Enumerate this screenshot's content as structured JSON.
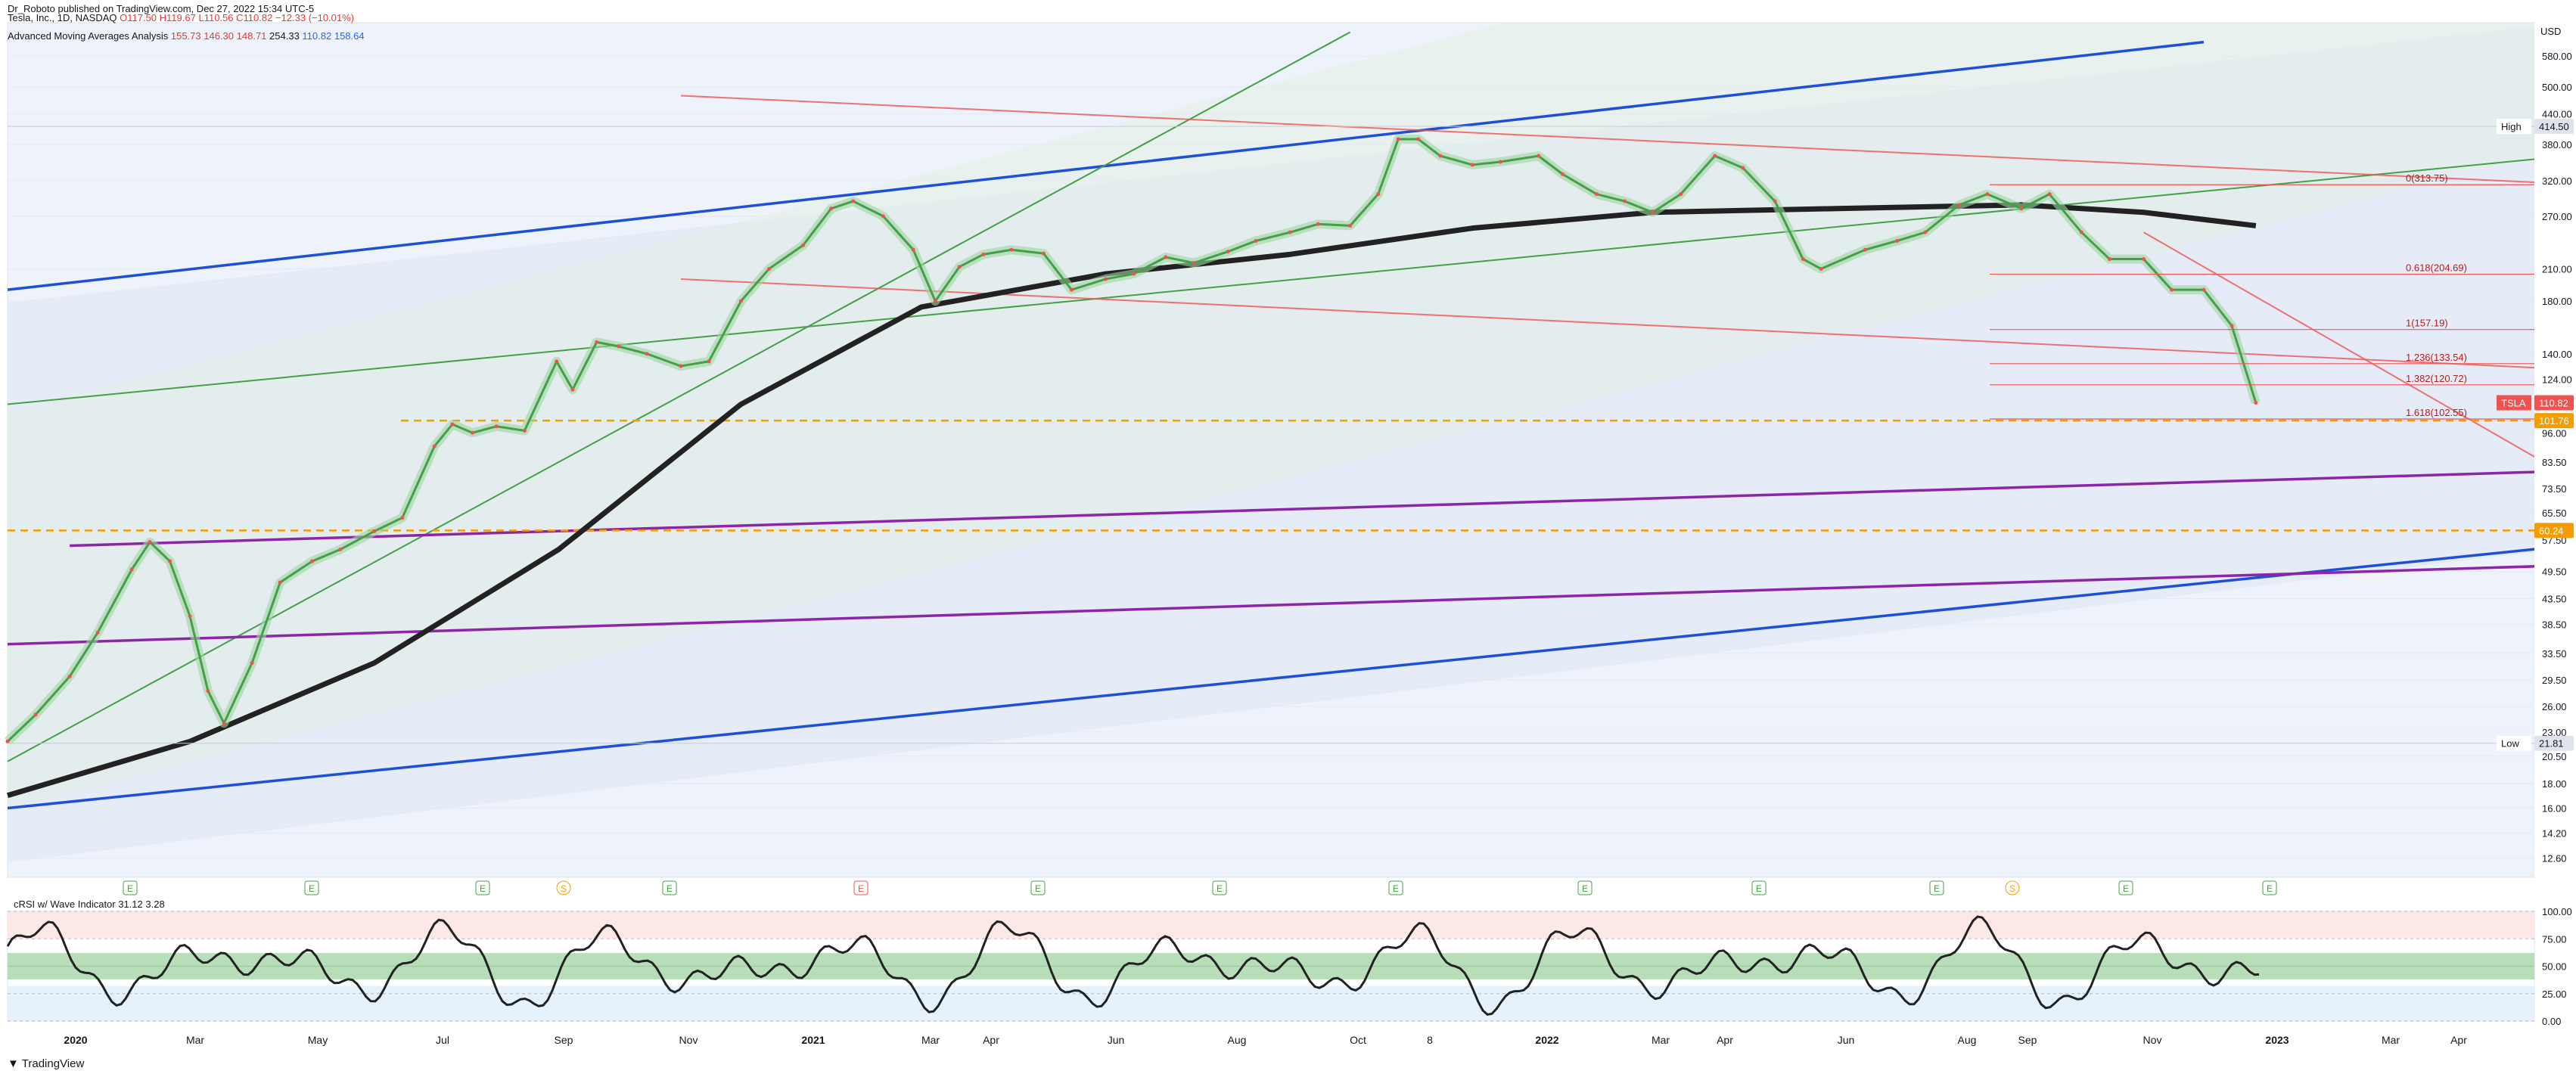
{
  "header": {
    "published": "Dr_Roboto published on TradingView.com, Dec 27, 2022 15:34 UTC-5",
    "symbol": "Tesla, Inc., 1D, NASDAQ",
    "ohlc": {
      "o": "O117.50",
      "h": "H119.67",
      "l": "L110.56",
      "c": "C110.82",
      "chg": "−12.33 (−10.01%)"
    },
    "indicator_name": "Advanced Moving Averages Analysis",
    "indicator_values": [
      "155.73",
      "146.30",
      "148.71",
      "254.33",
      "110.82",
      "158.64"
    ]
  },
  "footer": {
    "brand": "TradingView"
  },
  "colors": {
    "green": "#43a047",
    "red": "#ef5350",
    "blue": "#1e4fd8",
    "purple": "#8e24aa",
    "orange": "#f59d00",
    "black": "#222222",
    "bb": "#4aa3df"
  },
  "chart_data": {
    "type": "line",
    "title": "",
    "currency": "USD",
    "scale": "log",
    "ylim": [
      11.5,
      680
    ],
    "y_ticks": [
      "580.00",
      "500.00",
      "440.00",
      "380.00",
      "320.00",
      "270.00",
      "210.00",
      "180.00",
      "140.00",
      "124.00",
      "110.82",
      "96.00",
      "83.50",
      "73.50",
      "65.50",
      "57.50",
      "49.50",
      "43.50",
      "38.50",
      "33.50",
      "29.50",
      "26.00",
      "23.00",
      "20.50",
      "18.00",
      "16.00",
      "14.20",
      "12.60"
    ],
    "x_ticks": [
      "2020",
      "Mar",
      "May",
      "Jul",
      "Sep",
      "Nov",
      "2021",
      "Mar",
      "Apr",
      "Jun",
      "Aug",
      "Oct",
      "8",
      "2022",
      "Mar",
      "Apr",
      "Jun",
      "Aug",
      "Sep",
      "Nov",
      "2023",
      "Mar",
      "Apr"
    ],
    "price_labels": [
      {
        "text": "High",
        "value": "414.50"
      },
      {
        "text": "TSLA",
        "value": "110.82"
      },
      {
        "text": "",
        "value": "101.76"
      },
      {
        "text": "",
        "value": "60.24"
      },
      {
        "text": "Low",
        "value": "21.81"
      }
    ],
    "fib_levels": [
      "0(313.75)",
      "0.618(204.69)",
      "1(157.19)",
      "1.236(133.54)",
      "1.382(120.72)",
      "1.618(102.55)"
    ],
    "price_series": {
      "name": "TSLA",
      "x": [
        "2019-12-01",
        "2019-12-15",
        "2020-01-01",
        "2020-01-15",
        "2020-02-01",
        "2020-02-10",
        "2020-02-20",
        "2020-03-01",
        "2020-03-10",
        "2020-03-18",
        "2020-04-01",
        "2020-04-15",
        "2020-05-01",
        "2020-05-15",
        "2020-06-01",
        "2020-06-15",
        "2020-07-01",
        "2020-07-10",
        "2020-07-20",
        "2020-08-01",
        "2020-08-15",
        "2020-08-31",
        "2020-09-08",
        "2020-09-20",
        "2020-10-01",
        "2020-10-15",
        "2020-11-01",
        "2020-11-15",
        "2020-12-01",
        "2020-12-15",
        "2021-01-01",
        "2021-01-15",
        "2021-01-26",
        "2021-02-10",
        "2021-02-25",
        "2021-03-08",
        "2021-03-20",
        "2021-04-01",
        "2021-04-15",
        "2021-05-01",
        "2021-05-15",
        "2021-06-01",
        "2021-06-15",
        "2021-07-01",
        "2021-07-15",
        "2021-08-01",
        "2021-08-15",
        "2021-09-01",
        "2021-09-15",
        "2021-10-01",
        "2021-10-15",
        "2021-10-25",
        "2021-11-04",
        "2021-11-15",
        "2021-12-01",
        "2021-12-15",
        "2022-01-03",
        "2022-01-15",
        "2022-02-01",
        "2022-02-15",
        "2022-03-01",
        "2022-03-15",
        "2022-04-01",
        "2022-04-15",
        "2022-05-01",
        "2022-05-15",
        "2022-05-24",
        "2022-06-15",
        "2022-07-01",
        "2022-07-15",
        "2022-08-01",
        "2022-08-15",
        "2022-09-01",
        "2022-09-15",
        "2022-10-01",
        "2022-10-15",
        "2022-11-01",
        "2022-11-15",
        "2022-12-01",
        "2022-12-15",
        "2022-12-27"
      ],
      "values": [
        22,
        25,
        30,
        37,
        50,
        57,
        52,
        40,
        28,
        24,
        32,
        47,
        52,
        55,
        60,
        64,
        90,
        100,
        96,
        99,
        97,
        135,
        118,
        148,
        145,
        140,
        132,
        135,
        180,
        210,
        235,
        280,
        290,
        270,
        230,
        180,
        212,
        225,
        230,
        226,
        190,
        200,
        205,
        222,
        216,
        228,
        240,
        250,
        260,
        258,
        300,
        390,
        390,
        360,
        345,
        350,
        360,
        330,
        300,
        290,
        275,
        300,
        360,
        340,
        290,
        220,
        210,
        230,
        240,
        250,
        285,
        300,
        280,
        300,
        250,
        220,
        220,
        190,
        190,
        160,
        110.82
      ]
    },
    "ma_200": {
      "name": "",
      "x": [
        "2019-12-01",
        "2020-03-01",
        "2020-06-01",
        "2020-09-01",
        "2020-12-01",
        "2021-03-01",
        "2021-06-01",
        "2021-09-01",
        "2021-12-01",
        "2022-03-01",
        "2022-06-01",
        "2022-09-01",
        "2022-11-01",
        "2022-12-27"
      ],
      "values": [
        17,
        22,
        32,
        55,
        110,
        175,
        205,
        225,
        255,
        275,
        280,
        285,
        275,
        258
      ]
    },
    "lines": [
      {
        "name": "",
        "x": [
          "2019-12-01",
          "2022-12-01"
        ],
        "values": [
          190,
          620
        ]
      },
      {
        "name": "",
        "x": [
          "2019-12-01",
          "2023-06-01"
        ],
        "values": [
          16,
          56
        ]
      },
      {
        "name": "",
        "x": [
          "2019-12-01",
          "2021-10-01"
        ],
        "values": [
          20,
          650
        ]
      },
      {
        "name": "",
        "x": [
          "2019-12-01",
          "2023-06-01"
        ],
        "values": [
          110,
          360
        ]
      },
      {
        "name": "",
        "x": [
          "2020-01-01",
          "2023-06-01"
        ],
        "values": [
          56,
          80
        ]
      },
      {
        "name": "",
        "x": [
          "2019-12-01",
          "2023-06-01"
        ],
        "values": [
          35,
          51
        ]
      },
      {
        "name": "",
        "x": [
          "2020-11-01",
          "2023-06-01"
        ],
        "values": [
          480,
          315
        ]
      },
      {
        "name": "",
        "x": [
          "2020-11-01",
          "2023-06-01"
        ],
        "values": [
          200,
          130
        ]
      },
      {
        "name": "",
        "x": [
          "2022-11-01",
          "2023-06-01"
        ],
        "values": [
          250,
          78
        ]
      }
    ],
    "oscillator": {
      "title": "cRSI w/ Wave Indicator",
      "values_label": "31.12 3.28",
      "y_ticks": [
        "100.00",
        "75.00",
        "50.00",
        "25.00",
        "0.00"
      ],
      "ylim": [
        0,
        100
      ]
    },
    "event_markers": [
      "E",
      "E",
      "E",
      "S",
      "E",
      "E",
      "E",
      "E",
      "E",
      "E",
      "E",
      "E",
      "S",
      "E",
      "E"
    ]
  }
}
